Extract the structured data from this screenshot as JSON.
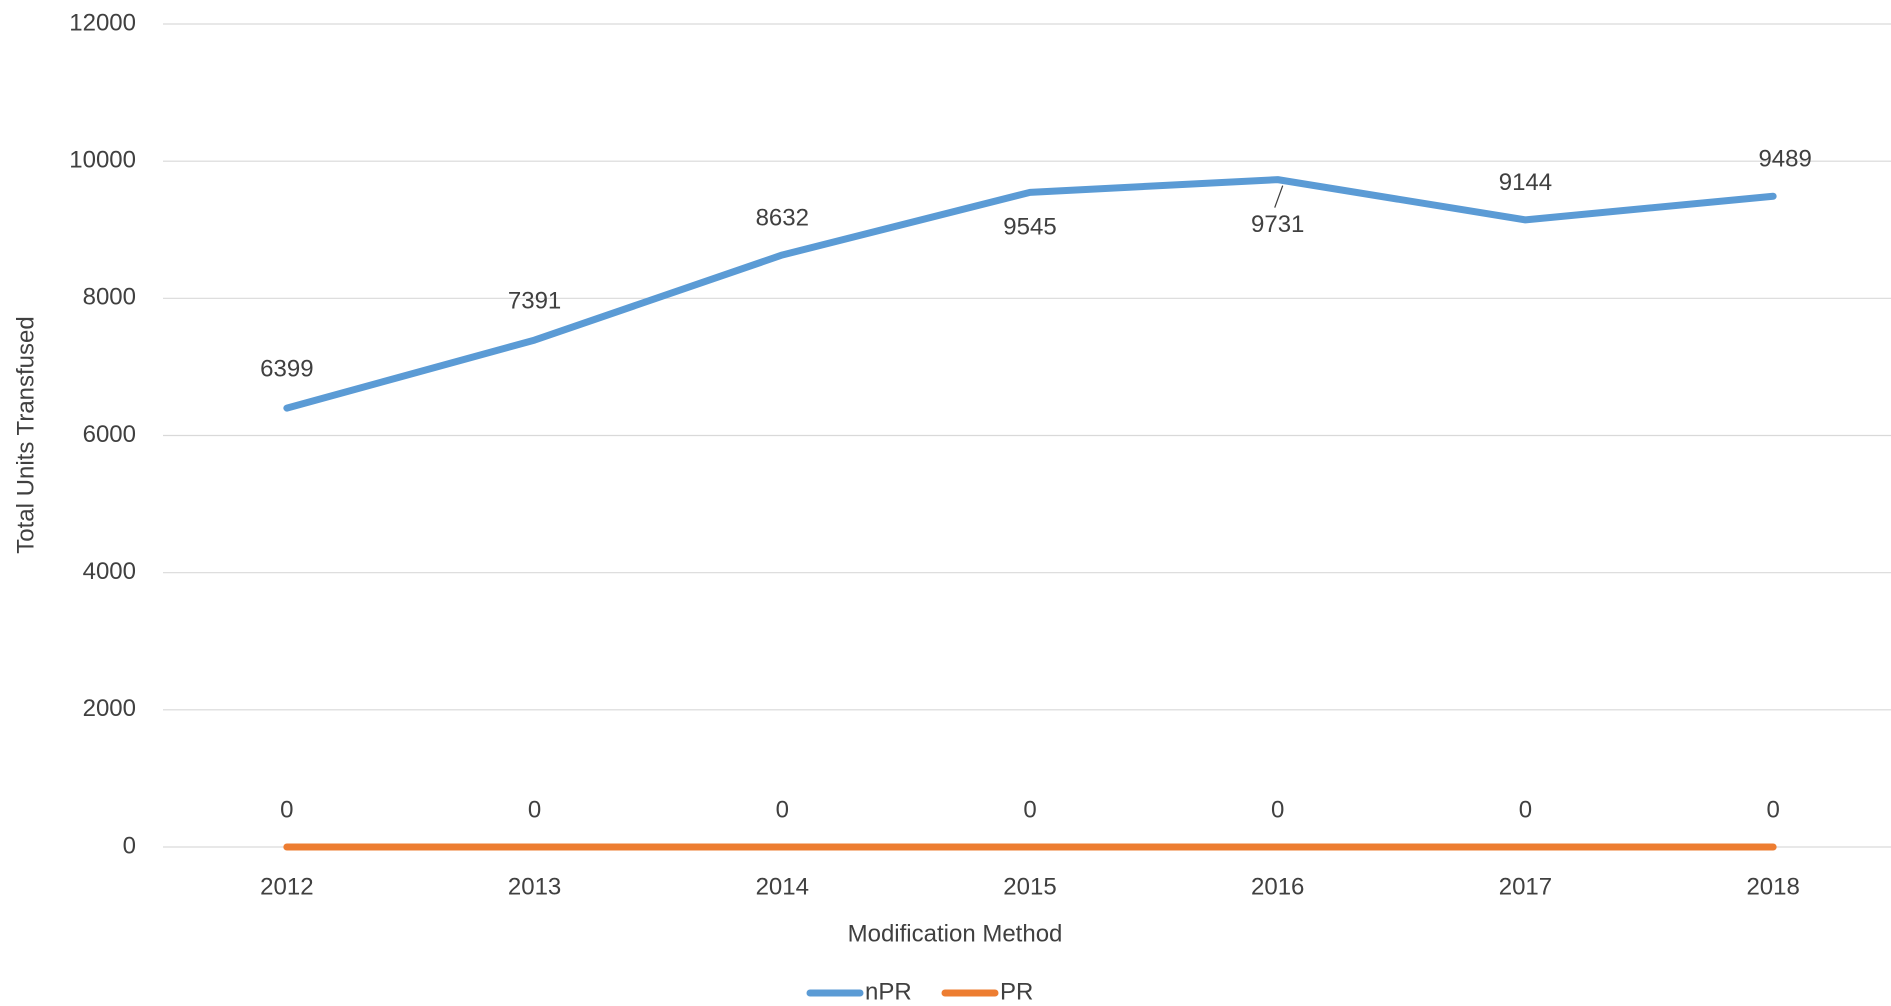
{
  "chart_data": {
    "type": "line",
    "x_label": "Modification Method",
    "y_label": "Total Units Transfused",
    "categories": [
      "2012",
      "2013",
      "2014",
      "2015",
      "2016",
      "2017",
      "2018"
    ],
    "series": [
      {
        "name": "nPR",
        "color": "#5b9bd5",
        "values": [
          6399,
          7391,
          8632,
          9545,
          9731,
          9144,
          9489
        ]
      },
      {
        "name": "PR",
        "color": "#ed7d31",
        "values": [
          0,
          0,
          0,
          0,
          0,
          0,
          0
        ]
      }
    ],
    "ylim": [
      0,
      12000
    ],
    "yticks": [
      0,
      2000,
      4000,
      6000,
      8000,
      10000,
      12000
    ],
    "grid": true,
    "legend": "bottom"
  }
}
